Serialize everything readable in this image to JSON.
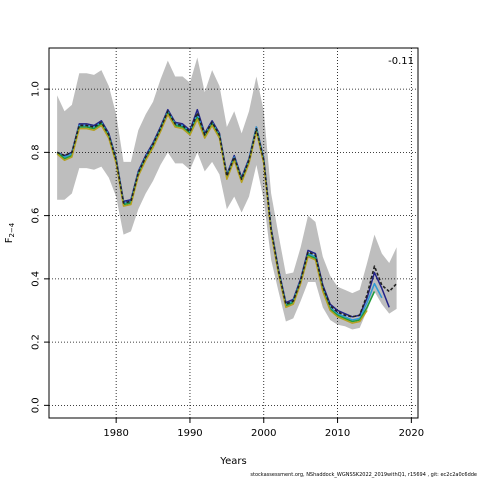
{
  "chart_data": {
    "type": "line",
    "xlabel": "Years",
    "ylabel_base": "F",
    "ylabel_sub": "2−4",
    "xlim": [
      1970.9,
      2020.9
    ],
    "ylim": [
      -0.04,
      1.13
    ],
    "xticks": [
      1980,
      1990,
      2000,
      2010,
      2020
    ],
    "yticks": [
      0.0,
      0.2,
      0.4,
      0.6,
      0.8,
      1.0
    ],
    "grid": true,
    "annotation": "-0.11",
    "band": {
      "years": [
        1972,
        1973,
        1974,
        1975,
        1976,
        1977,
        1978,
        1979,
        1980,
        1981,
        1982,
        1983,
        1984,
        1985,
        1986,
        1987,
        1988,
        1989,
        1990,
        1991,
        1992,
        1993,
        1994,
        1995,
        1996,
        1997,
        1998,
        1999,
        2000,
        2001,
        2002,
        2003,
        2004,
        2005,
        2006,
        2007,
        2008,
        2009,
        2010,
        2011,
        2012,
        2013,
        2014,
        2015,
        2016,
        2017,
        2018
      ],
      "lower": [
        0.65,
        0.65,
        0.67,
        0.75,
        0.75,
        0.745,
        0.755,
        0.72,
        0.66,
        0.54,
        0.55,
        0.62,
        0.67,
        0.71,
        0.76,
        0.8,
        0.765,
        0.765,
        0.745,
        0.8,
        0.74,
        0.77,
        0.73,
        0.62,
        0.66,
        0.61,
        0.66,
        0.76,
        0.65,
        0.46,
        0.36,
        0.265,
        0.275,
        0.33,
        0.39,
        0.39,
        0.31,
        0.27,
        0.255,
        0.25,
        0.24,
        0.245,
        0.3,
        0.36,
        0.32,
        0.29,
        0.305
      ],
      "upper": [
        0.98,
        0.93,
        0.95,
        1.05,
        1.05,
        1.045,
        1.06,
        1.01,
        0.92,
        0.77,
        0.77,
        0.87,
        0.92,
        0.96,
        1.03,
        1.09,
        1.04,
        1.04,
        1.02,
        1.1,
        0.99,
        1.06,
        1.01,
        0.88,
        0.93,
        0.86,
        0.93,
        1.04,
        0.93,
        0.67,
        0.54,
        0.415,
        0.42,
        0.5,
        0.6,
        0.58,
        0.47,
        0.41,
        0.375,
        0.365,
        0.355,
        0.365,
        0.45,
        0.54,
        0.48,
        0.45,
        0.5
      ]
    },
    "series": [
      {
        "color": "#222288",
        "style": "solid",
        "x": [
          1972,
          1973,
          1974,
          1975,
          1976,
          1977,
          1978,
          1979,
          1980,
          1981,
          1982,
          1983,
          1984,
          1985,
          1986,
          1987,
          1988,
          1989,
          1990,
          1991,
          1992,
          1993,
          1994,
          1995,
          1996,
          1997,
          1998,
          1999,
          2000,
          2001,
          2002,
          2003,
          2004,
          2005,
          2006,
          2007,
          2008,
          2009,
          2010,
          2011,
          2012,
          2013,
          2014,
          2015,
          2016,
          2017
        ],
        "values": [
          0.8,
          0.79,
          0.8,
          0.89,
          0.89,
          0.885,
          0.9,
          0.86,
          0.78,
          0.645,
          0.65,
          0.74,
          0.79,
          0.83,
          0.88,
          0.935,
          0.895,
          0.89,
          0.87,
          0.935,
          0.86,
          0.9,
          0.86,
          0.73,
          0.79,
          0.72,
          0.78,
          0.88,
          0.78,
          0.56,
          0.43,
          0.325,
          0.335,
          0.4,
          0.49,
          0.48,
          0.38,
          0.32,
          0.3,
          0.29,
          0.28,
          0.285,
          0.34,
          0.42,
          0.37,
          0.31
        ]
      },
      {
        "color": "#2e9ad6",
        "style": "solid",
        "x": [
          1972,
          1973,
          1974,
          1975,
          1976,
          1977,
          1978,
          1979,
          1980,
          1981,
          1982,
          1983,
          1984,
          1985,
          1986,
          1987,
          1988,
          1989,
          1990,
          1991,
          1992,
          1993,
          1994,
          1995,
          1996,
          1997,
          1998,
          1999,
          2000,
          2001,
          2002,
          2003,
          2004,
          2005,
          2006,
          2007,
          2008,
          2009,
          2010,
          2011,
          2012,
          2013,
          2014,
          2015,
          2016
        ],
        "values": [
          0.8,
          0.785,
          0.795,
          0.885,
          0.885,
          0.88,
          0.895,
          0.855,
          0.775,
          0.64,
          0.645,
          0.735,
          0.785,
          0.825,
          0.875,
          0.93,
          0.89,
          0.885,
          0.865,
          0.92,
          0.855,
          0.895,
          0.855,
          0.725,
          0.785,
          0.715,
          0.775,
          0.88,
          0.775,
          0.555,
          0.425,
          0.32,
          0.33,
          0.395,
          0.48,
          0.47,
          0.37,
          0.31,
          0.29,
          0.28,
          0.27,
          0.275,
          0.325,
          0.385,
          0.34
        ]
      },
      {
        "color": "#1e9c3a",
        "style": "solid",
        "x": [
          1972,
          1973,
          1974,
          1975,
          1976,
          1977,
          1978,
          1979,
          1980,
          1981,
          1982,
          1983,
          1984,
          1985,
          1986,
          1987,
          1988,
          1989,
          1990,
          1991,
          1992,
          1993,
          1994,
          1995,
          1996,
          1997,
          1998,
          1999,
          2000,
          2001,
          2002,
          2003,
          2004,
          2005,
          2006,
          2007,
          2008,
          2009,
          2010,
          2011,
          2012,
          2013,
          2014,
          2015
        ],
        "values": [
          0.8,
          0.78,
          0.79,
          0.88,
          0.88,
          0.875,
          0.89,
          0.85,
          0.77,
          0.635,
          0.64,
          0.73,
          0.78,
          0.82,
          0.87,
          0.925,
          0.885,
          0.88,
          0.86,
          0.91,
          0.85,
          0.89,
          0.85,
          0.72,
          0.78,
          0.71,
          0.77,
          0.87,
          0.77,
          0.55,
          0.42,
          0.315,
          0.325,
          0.39,
          0.475,
          0.465,
          0.365,
          0.305,
          0.285,
          0.275,
          0.265,
          0.27,
          0.31,
          0.36
        ]
      },
      {
        "color": "#b5a020",
        "style": "solid",
        "x": [
          1972,
          1973,
          1974,
          1975,
          1976,
          1977,
          1978,
          1979,
          1980,
          1981,
          1982,
          1983,
          1984,
          1985,
          1986,
          1987,
          1988,
          1989,
          1990,
          1991,
          1992,
          1993,
          1994,
          1995,
          1996,
          1997,
          1998,
          1999,
          2000,
          2001,
          2002,
          2003,
          2004,
          2005,
          2006,
          2007,
          2008,
          2009,
          2010,
          2011,
          2012,
          2013,
          2014
        ],
        "values": [
          0.795,
          0.775,
          0.785,
          0.875,
          0.875,
          0.87,
          0.885,
          0.845,
          0.765,
          0.63,
          0.635,
          0.725,
          0.775,
          0.815,
          0.865,
          0.92,
          0.88,
          0.875,
          0.855,
          0.905,
          0.845,
          0.885,
          0.845,
          0.715,
          0.775,
          0.705,
          0.765,
          0.865,
          0.765,
          0.545,
          0.415,
          0.31,
          0.32,
          0.385,
          0.47,
          0.46,
          0.36,
          0.3,
          0.28,
          0.27,
          0.26,
          0.265,
          0.3
        ]
      },
      {
        "color": "#222222",
        "style": "dashed",
        "x": [
          1972,
          1973,
          1974,
          1975,
          1976,
          1977,
          1978,
          1979,
          1980,
          1981,
          1982,
          1983,
          1984,
          1985,
          1986,
          1987,
          1988,
          1989,
          1990,
          1991,
          1992,
          1993,
          1994,
          1995,
          1996,
          1997,
          1998,
          1999,
          2000,
          2001,
          2002,
          2003,
          2004,
          2005,
          2006,
          2007,
          2008,
          2009,
          2010,
          2011,
          2012,
          2013,
          2014,
          2015,
          2016,
          2017,
          2018
        ],
        "values": [
          0.8,
          0.79,
          0.8,
          0.885,
          0.885,
          0.88,
          0.895,
          0.855,
          0.775,
          0.64,
          0.645,
          0.735,
          0.785,
          0.825,
          0.875,
          0.93,
          0.89,
          0.885,
          0.865,
          0.925,
          0.855,
          0.895,
          0.855,
          0.725,
          0.785,
          0.715,
          0.775,
          0.875,
          0.775,
          0.555,
          0.425,
          0.32,
          0.33,
          0.395,
          0.485,
          0.475,
          0.375,
          0.315,
          0.295,
          0.285,
          0.28,
          0.285,
          0.35,
          0.44,
          0.38,
          0.36,
          0.385
        ]
      }
    ]
  },
  "colors": {
    "band": "#bebebe",
    "grid": "#000000"
  },
  "footer_text": "stockassessment.org, NShaddock_WGNSSK2022_2019withQ1, r15694 , git: ec2c2a0c6dde"
}
